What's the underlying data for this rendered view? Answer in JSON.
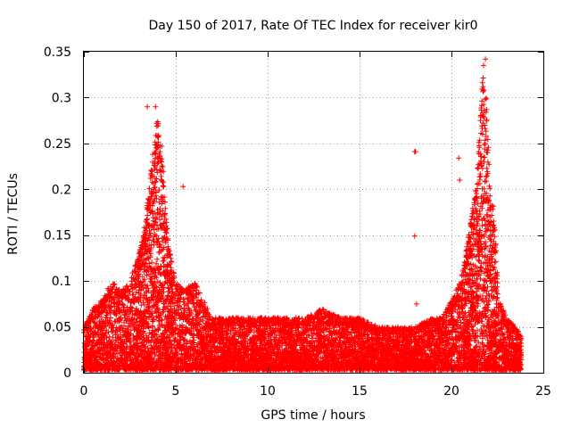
{
  "chart_data": {
    "type": "scatter",
    "title": "Day 150 of 2017, Rate Of TEC Index for receiver kir0",
    "xlabel": "GPS time / hours",
    "ylabel": "ROTI / TECUs",
    "xlim": [
      0,
      25
    ],
    "ylim": [
      0,
      0.35
    ],
    "xticks": [
      0,
      5,
      10,
      15,
      20,
      25
    ],
    "xtick_labels": [
      "0",
      "5",
      "10",
      "15",
      "20",
      "25"
    ],
    "yticks": [
      0,
      0.05,
      0.1,
      0.15,
      0.2,
      0.25,
      0.3,
      0.35
    ],
    "ytick_labels": [
      "0",
      "0.05",
      "0.1",
      "0.15",
      "0.2",
      "0.25",
      "0.3",
      "0.35"
    ],
    "grid": true,
    "marker": "+",
    "color": "#ff0000",
    "series": [
      {
        "name": "ROTI",
        "envelope": {
          "x": [
            0.0,
            0.5,
            1.0,
            1.5,
            2.0,
            2.5,
            3.0,
            3.3,
            3.6,
            3.8,
            4.0,
            4.2,
            4.4,
            4.6,
            5.0,
            5.5,
            6.0,
            6.5,
            7.0,
            8.0,
            9.0,
            10.0,
            11.0,
            12.0,
            13.0,
            14.0,
            15.0,
            16.0,
            17.0,
            18.0,
            19.0,
            19.5,
            20.0,
            20.5,
            21.0,
            21.3,
            21.5,
            21.7,
            21.9,
            22.1,
            22.3,
            22.6,
            23.0,
            23.5,
            23.8
          ],
          "y": [
            0.05,
            0.07,
            0.08,
            0.1,
            0.09,
            0.1,
            0.13,
            0.16,
            0.21,
            0.25,
            0.28,
            0.26,
            0.2,
            0.14,
            0.1,
            0.09,
            0.1,
            0.08,
            0.06,
            0.06,
            0.06,
            0.06,
            0.06,
            0.06,
            0.07,
            0.06,
            0.06,
            0.05,
            0.05,
            0.05,
            0.06,
            0.06,
            0.08,
            0.1,
            0.16,
            0.2,
            0.26,
            0.33,
            0.3,
            0.2,
            0.18,
            0.08,
            0.06,
            0.05,
            0.04
          ]
        },
        "notable_points": [
          {
            "x": 18.0,
            "y": 0.241
          },
          {
            "x": 18.05,
            "y": 0.241
          },
          {
            "x": 18.0,
            "y": 0.149
          },
          {
            "x": 18.1,
            "y": 0.075
          },
          {
            "x": 5.4,
            "y": 0.203
          },
          {
            "x": 21.75,
            "y": 0.335
          },
          {
            "x": 21.85,
            "y": 0.342
          },
          {
            "x": 3.45,
            "y": 0.29
          },
          {
            "x": 3.9,
            "y": 0.29
          },
          {
            "x": 20.4,
            "y": 0.234
          },
          {
            "x": 20.45,
            "y": 0.21
          }
        ]
      }
    ]
  }
}
